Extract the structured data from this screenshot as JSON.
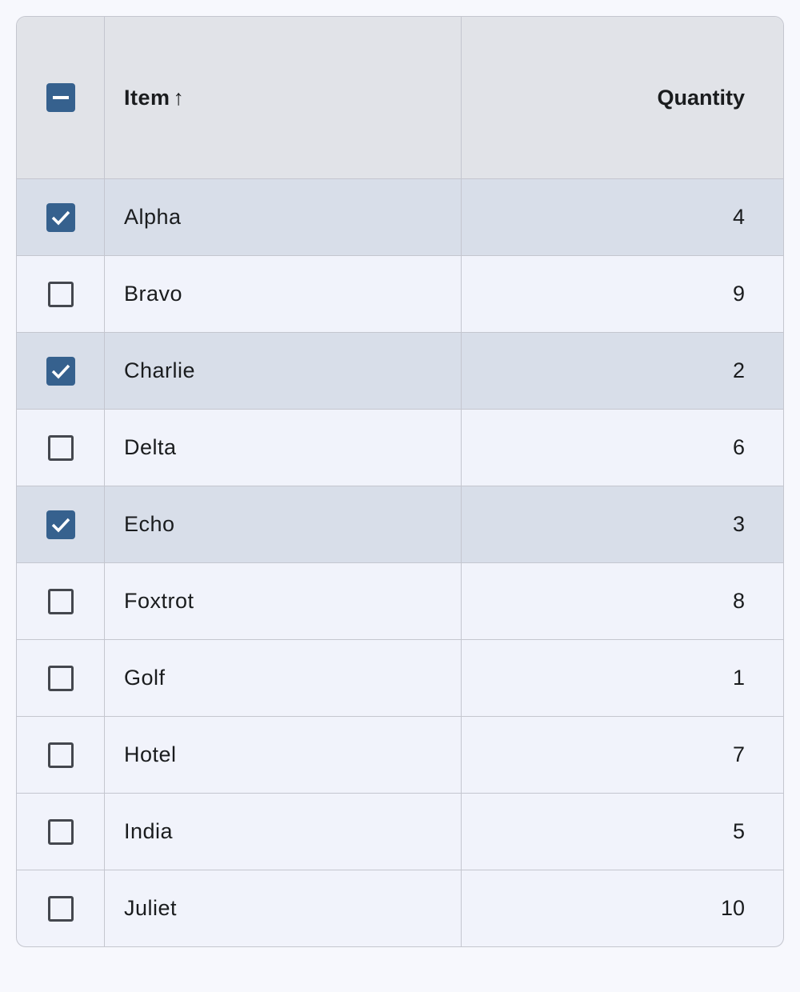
{
  "header": {
    "select_all_state": "indeterminate",
    "item_label": "Item",
    "sort_icon": "arrow-up-icon",
    "sort_glyph": "↑",
    "quantity_label": "Quantity"
  },
  "colors": {
    "accent": "#36618e",
    "header_bg": "#e1e3e8",
    "selected_row_bg": "#d8dee9",
    "row_bg": "#f1f3fb"
  },
  "rows": [
    {
      "item": "Alpha",
      "quantity": "4",
      "selected": true
    },
    {
      "item": "Bravo",
      "quantity": "9",
      "selected": false
    },
    {
      "item": "Charlie",
      "quantity": "2",
      "selected": true
    },
    {
      "item": "Delta",
      "quantity": "6",
      "selected": false
    },
    {
      "item": "Echo",
      "quantity": "3",
      "selected": true
    },
    {
      "item": "Foxtrot",
      "quantity": "8",
      "selected": false
    },
    {
      "item": "Golf",
      "quantity": "1",
      "selected": false
    },
    {
      "item": "Hotel",
      "quantity": "7",
      "selected": false
    },
    {
      "item": "India",
      "quantity": "5",
      "selected": false
    },
    {
      "item": "Juliet",
      "quantity": "10",
      "selected": false
    }
  ]
}
